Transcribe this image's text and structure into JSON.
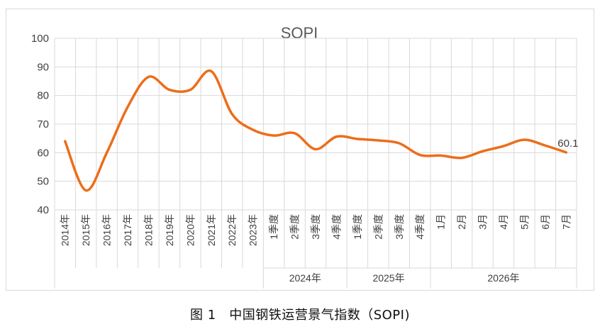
{
  "caption": "图 1　中国钢铁运营景气指数（SOPI)",
  "chart_data": {
    "type": "line",
    "title": "SOPI",
    "xlabel": "",
    "ylabel": "",
    "ylim": [
      40,
      100
    ],
    "yticks": [
      40,
      50,
      60,
      70,
      80,
      90,
      100
    ],
    "grid": true,
    "line_color": "#ed6d1a",
    "categories": [
      "2014年",
      "2015年",
      "2016年",
      "2017年",
      "2018年",
      "2019年",
      "2020年",
      "2021年",
      "2022年",
      "2023年",
      "1季度",
      "2季度",
      "3季度",
      "4季度",
      "1季度",
      "2季度",
      "3季度",
      "4季度",
      "1月",
      "2月",
      "3月",
      "4月",
      "5月",
      "6月",
      "7月"
    ],
    "groups": [
      {
        "label": "2024年",
        "start": 10,
        "end": 13
      },
      {
        "label": "2025年",
        "start": 14,
        "end": 17
      },
      {
        "label": "2026年",
        "start": 18,
        "end": 24
      }
    ],
    "series": [
      {
        "values": [
          64,
          46.8,
          60,
          76,
          86.5,
          82,
          82,
          88.5,
          73.5,
          68,
          66,
          66.8,
          61.2,
          65.6,
          64.8,
          64.3,
          63.3,
          59.2,
          59,
          58.2,
          60.5,
          62.3,
          64.5,
          62.5,
          60.1
        ]
      }
    ],
    "data_labels": [
      {
        "index": 24,
        "text": "60.1"
      }
    ]
  }
}
